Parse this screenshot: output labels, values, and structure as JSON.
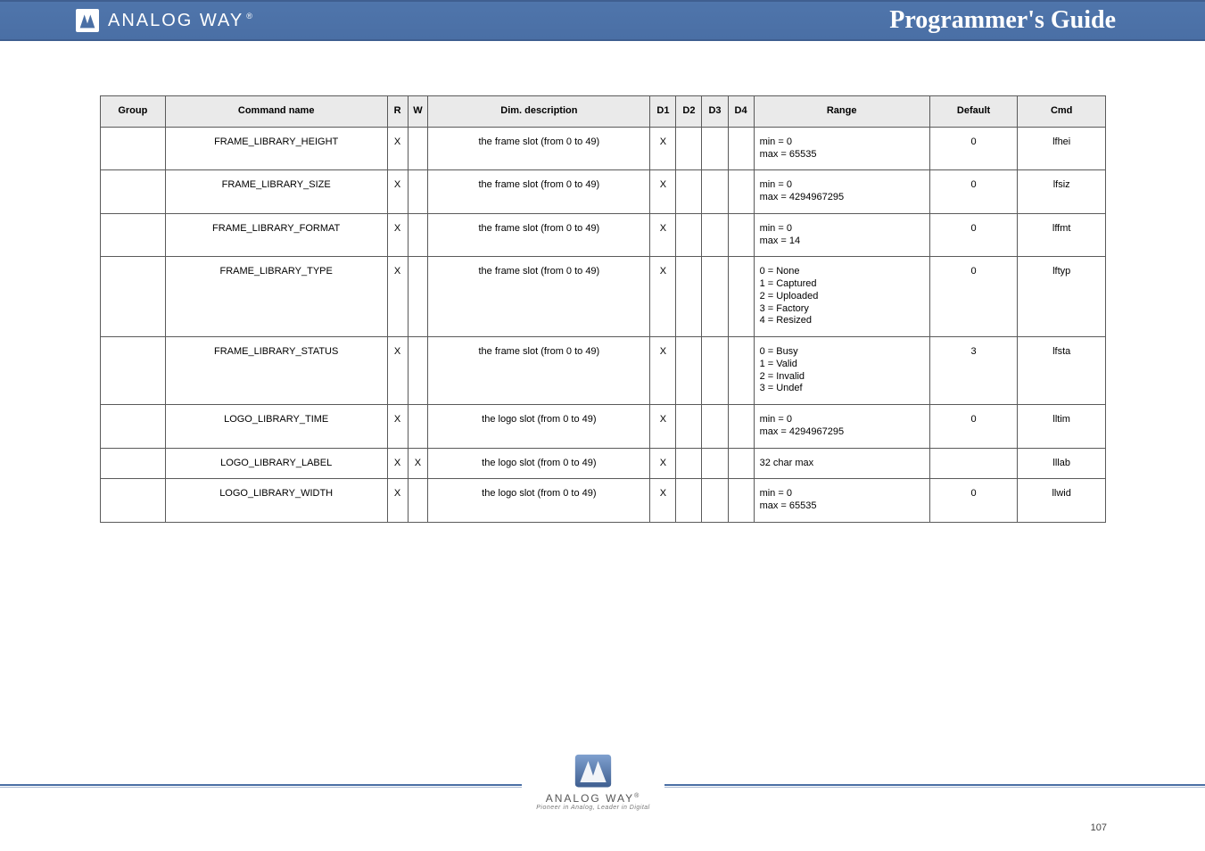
{
  "banner": {
    "brand": "ANALOG WAY",
    "registered": "®",
    "title": "Programmer's Guide"
  },
  "table": {
    "columns": [
      "Group",
      "Command name",
      "R",
      "W",
      "Dim. description",
      "D1",
      "D2",
      "D3",
      "D4",
      "Range",
      "Default",
      "Cmd"
    ],
    "rows": [
      {
        "group": "",
        "name": "FRAME_LIBRARY_HEIGHT",
        "r": "X",
        "w": "",
        "dimdesc": "the frame slot (from 0 to 49)",
        "d1": "X",
        "d2": "",
        "d3": "",
        "d4": "",
        "range": "min = 0\nmax = 65535",
        "default": "0",
        "cmd": "lfhei"
      },
      {
        "group": "",
        "name": "FRAME_LIBRARY_SIZE",
        "r": "X",
        "w": "",
        "dimdesc": "the frame slot (from 0 to 49)",
        "d1": "X",
        "d2": "",
        "d3": "",
        "d4": "",
        "range": "min = 0\nmax = 4294967295",
        "default": "0",
        "cmd": "lfsiz"
      },
      {
        "group": "",
        "name": "FRAME_LIBRARY_FORMAT",
        "r": "X",
        "w": "",
        "dimdesc": "the frame slot (from 0 to 49)",
        "d1": "X",
        "d2": "",
        "d3": "",
        "d4": "",
        "range": "min = 0\nmax = 14",
        "default": "0",
        "cmd": "lffmt"
      },
      {
        "group": "",
        "name": "FRAME_LIBRARY_TYPE",
        "r": "X",
        "w": "",
        "dimdesc": "the frame slot (from 0 to 49)",
        "d1": "X",
        "d2": "",
        "d3": "",
        "d4": "",
        "range": "0 = None\n1 = Captured\n2 = Uploaded\n3 = Factory\n4 = Resized",
        "default": "0",
        "cmd": "lftyp"
      },
      {
        "group": "",
        "name": "FRAME_LIBRARY_STATUS",
        "r": "X",
        "w": "",
        "dimdesc": "the frame slot (from 0 to 49)",
        "d1": "X",
        "d2": "",
        "d3": "",
        "d4": "",
        "range": "0 = Busy\n1 = Valid\n2 = Invalid\n3 = Undef",
        "default": "3",
        "cmd": "lfsta"
      },
      {
        "group": "",
        "name": "LOGO_LIBRARY_TIME",
        "r": "X",
        "w": "",
        "dimdesc": "the logo slot (from 0 to 49)",
        "d1": "X",
        "d2": "",
        "d3": "",
        "d4": "",
        "range": "min = 0\nmax = 4294967295",
        "default": "0",
        "cmd": "lltim"
      },
      {
        "group": "",
        "name": "LOGO_LIBRARY_LABEL",
        "r": "X",
        "w": "X",
        "dimdesc": "the logo slot (from 0 to 49)",
        "d1": "X",
        "d2": "",
        "d3": "",
        "d4": "",
        "range": "32 char max",
        "default": "",
        "cmd": "lllab"
      },
      {
        "group": "",
        "name": "LOGO_LIBRARY_WIDTH",
        "r": "X",
        "w": "",
        "dimdesc": "the logo slot (from 0 to 49)",
        "d1": "X",
        "d2": "",
        "d3": "",
        "d4": "",
        "range": "min = 0\nmax = 65535",
        "default": "0",
        "cmd": "llwid"
      }
    ]
  },
  "footer": {
    "brand": "ANALOG WAY",
    "sup": "®",
    "tag": "Pioneer in Analog, Leader in Digital",
    "page": "107"
  },
  "colors": {
    "bannerTop": "#4f75ab",
    "bannerBottom": "#4a6fa5",
    "bannerBorder": "#3f5f90",
    "headerBg": "#eaeaea",
    "cellBorder": "#5a5a5a",
    "footLine": "#4a6fa5"
  }
}
